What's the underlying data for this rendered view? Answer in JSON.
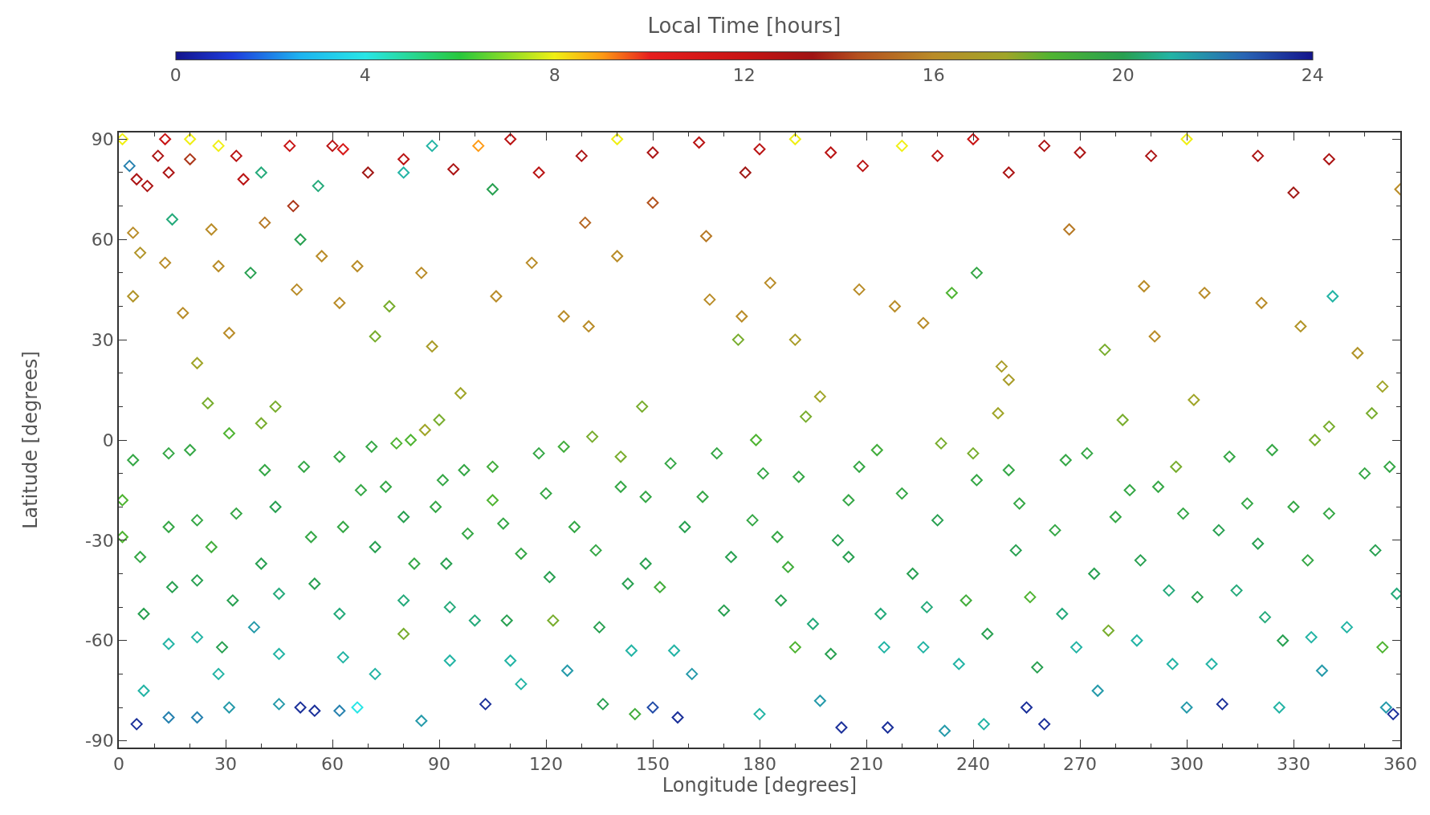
{
  "chart_data": {
    "type": "scatter",
    "xlabel": "Longitude [degrees]",
    "ylabel": "Latitude [degrees]",
    "clabel": "Local Time [hours]",
    "xlim": [
      0,
      360
    ],
    "xticks": [
      0,
      30,
      60,
      90,
      120,
      150,
      180,
      210,
      240,
      270,
      300,
      330,
      360
    ],
    "ylim": [
      -92,
      92
    ],
    "yticks": [
      -90,
      -60,
      -30,
      0,
      30,
      60,
      90
    ],
    "clim": [
      0,
      24
    ],
    "cticks": [
      0,
      4,
      8,
      12,
      16,
      20,
      24
    ],
    "marker": "diamond",
    "x": [
      1,
      3,
      5,
      8,
      4,
      6,
      4,
      1,
      1,
      4,
      6,
      7,
      7,
      5,
      11,
      13,
      14,
      13,
      15,
      14,
      14,
      15,
      14,
      14,
      18,
      20,
      22,
      20,
      22,
      22,
      22,
      22,
      25,
      26,
      28,
      26,
      28,
      29,
      28,
      31,
      31,
      33,
      32,
      31,
      33,
      35,
      37,
      40,
      41,
      40,
      38,
      40,
      41,
      44,
      44,
      45,
      45,
      45,
      48,
      49,
      50,
      51,
      52,
      54,
      51,
      55,
      55,
      57,
      56,
      62,
      63,
      62,
      63,
      62,
      63,
      62,
      67,
      68,
      67,
      70,
      71,
      72,
      72,
      72,
      75,
      76,
      78,
      80,
      82,
      80,
      80,
      80,
      83,
      85,
      86,
      88,
      85,
      89,
      88,
      90,
      91,
      92,
      93,
      93,
      94,
      96,
      97,
      98,
      100,
      101,
      103,
      105,
      105,
      106,
      105,
      108,
      109,
      110,
      113,
      113,
      116,
      118,
      118,
      120,
      121,
      122,
      125,
      125,
      126,
      128,
      131,
      132,
      133,
      134,
      135,
      136,
      140,
      141,
      141,
      143,
      144,
      145,
      147,
      148,
      148,
      150,
      150,
      152,
      155,
      156,
      157,
      159,
      161,
      163,
      165,
      166,
      164,
      168,
      170,
      172,
      174,
      175,
      176,
      178,
      179,
      180,
      181,
      183,
      185,
      186,
      188,
      190,
      190,
      191,
      193,
      195,
      197,
      197,
      200,
      202,
      203,
      205,
      205,
      208,
      208,
      209,
      213,
      214,
      215,
      216,
      218,
      220,
      223,
      226,
      226,
      227,
      230,
      231,
      232,
      234,
      236,
      238,
      240,
      241,
      241,
      243,
      244,
      247,
      248,
      250,
      250,
      252,
      253,
      255,
      256,
      258,
      260,
      263,
      265,
      266,
      267,
      269,
      272,
      274,
      275,
      277,
      278,
      280,
      282,
      284,
      286,
      287,
      288,
      291,
      292,
      295,
      296,
      297,
      299,
      300,
      302,
      303,
      305,
      307,
      309,
      310,
      312,
      314,
      317,
      320,
      321,
      322,
      324,
      326,
      327,
      330,
      332,
      334,
      335,
      336,
      338,
      340,
      340,
      341,
      345,
      348,
      350,
      352,
      353,
      355,
      356,
      358,
      357,
      359,
      360,
      355,
      340,
      330,
      320,
      300,
      290,
      270,
      260,
      250,
      240,
      230,
      220,
      200,
      190,
      180,
      150,
      140,
      130,
      110,
      80,
      60,
      20
    ],
    "values": [
      90,
      82,
      78,
      76,
      62,
      56,
      43,
      -18,
      -29,
      -6,
      -35,
      -52,
      -75,
      -85,
      85,
      90,
      80,
      53,
      66,
      -4,
      -26,
      -44,
      -61,
      -83,
      38,
      84,
      23,
      -3,
      -24,
      -42,
      -59,
      -83,
      11,
      -32,
      52,
      63,
      88,
      -62,
      -70,
      32,
      2,
      -22,
      -48,
      -80,
      85,
      78,
      50,
      5,
      -9,
      -37,
      -56,
      80,
      65,
      10,
      -20,
      -46,
      -64,
      -79,
      88,
      70,
      45,
      60,
      -8,
      -29,
      -80,
      -81,
      -43,
      55,
      76,
      41,
      87,
      -5,
      -26,
      -52,
      -65,
      -81,
      -80,
      -15,
      52,
      80,
      -2,
      31,
      -32,
      -70,
      -14,
      40,
      -1,
      80,
      0,
      -23,
      -48,
      -58,
      -37,
      50,
      3,
      28,
      -84,
      -20,
      88,
      6,
      -12,
      -37,
      -50,
      -66,
      81,
      14,
      -9,
      -28,
      -54,
      88,
      -79,
      -8,
      -18,
      43,
      75,
      -25,
      -54,
      -66,
      -34,
      -73,
      53,
      -4,
      80,
      -16,
      -41,
      -54,
      -2,
      37,
      -69,
      -26,
      65,
      34,
      1,
      -33,
      -56,
      -79,
      55,
      -5,
      -14,
      -43,
      -63,
      -82,
      10,
      -37,
      -17,
      -80,
      71,
      -44,
      -7,
      -63,
      -83,
      -26,
      -70,
      89,
      61,
      42,
      -17,
      -4,
      -51,
      -35,
      30,
      37,
      80,
      -24,
      0,
      -82,
      -10,
      47,
      -29,
      -48,
      -38,
      -62,
      30,
      -11,
      7,
      -55,
      13,
      -78,
      -64,
      -30,
      -86,
      -18,
      -35,
      45,
      -8,
      82,
      -3,
      -52,
      -62,
      -86,
      40,
      -16,
      -40,
      35,
      -62,
      -50,
      -24,
      -1,
      -87,
      44,
      -67,
      -48,
      -4,
      50,
      -12,
      -85,
      -58,
      8,
      22,
      18,
      -9,
      -33,
      -19,
      -80,
      -47,
      -68,
      -85,
      -27,
      -52,
      -6,
      63,
      -62,
      -4,
      -40,
      -75,
      27,
      -57,
      -23,
      6,
      -15,
      -60,
      -36,
      46,
      31,
      -14,
      -45,
      -67,
      -8,
      -22,
      -80,
      12,
      -47,
      44,
      -67,
      -27,
      -79,
      -5,
      -45,
      -19,
      -31,
      41,
      -53,
      -3,
      -80,
      -60,
      -20,
      34,
      -36,
      -59,
      0,
      -69,
      -22,
      4,
      43,
      -56,
      26,
      -10,
      8,
      -33,
      -62,
      -80,
      -82,
      -8,
      -46,
      75,
      16,
      84,
      74,
      85,
      90,
      85,
      86,
      88,
      80,
      90,
      85,
      88,
      86,
      90,
      87,
      86,
      90,
      85,
      90,
      84,
      88,
      90
    ],
    "cvalues": [
      8,
      22,
      13,
      13,
      16,
      16.5,
      16.5,
      18.5,
      18.5,
      19.5,
      19.5,
      20,
      21,
      23.5,
      13,
      12,
      13,
      16,
      20.5,
      19.5,
      19.5,
      20,
      21,
      22,
      16,
      14,
      17.5,
      19.5,
      19.5,
      20,
      21,
      22,
      18,
      19,
      16,
      16,
      8,
      20,
      21,
      16,
      18.5,
      19.5,
      20,
      21.5,
      12.5,
      12.5,
      20,
      18,
      19.5,
      20,
      21.5,
      20.5,
      15.5,
      18,
      20,
      20.5,
      21,
      21.5,
      12,
      14,
      16,
      20,
      19.5,
      19.5,
      23.5,
      23.5,
      20,
      16,
      20.5,
      16,
      11,
      19.5,
      19.5,
      20.5,
      21,
      22,
      4,
      19.5,
      16,
      13.5,
      19.5,
      18,
      20,
      21,
      19.5,
      18,
      18.5,
      21,
      18.5,
      20,
      20.5,
      18,
      19.5,
      16,
      17.5,
      17,
      21.5,
      19.5,
      21,
      18,
      19.5,
      20,
      20.5,
      21,
      13,
      17.5,
      19.5,
      19.5,
      20.5,
      9,
      23.5,
      19,
      18.5,
      16,
      20,
      19.5,
      20,
      21,
      19.5,
      21,
      16,
      19.5,
      12.5,
      19.5,
      20,
      18,
      19,
      16,
      21.5,
      19.5,
      15,
      16,
      18,
      19.5,
      20,
      20,
      16,
      18,
      19.5,
      20,
      21,
      19,
      18,
      20,
      19.5,
      23,
      14.5,
      19,
      19.5,
      21,
      23.5,
      20,
      21.5,
      12.5,
      15.5,
      16,
      19.5,
      19.5,
      20,
      20,
      18,
      16,
      13.5,
      19.5,
      18.5,
      21,
      19.5,
      16,
      19.5,
      20,
      19,
      18.5,
      17,
      19.5,
      18,
      20.5,
      17.5,
      21.5,
      20,
      20,
      23.5,
      19.5,
      20,
      16,
      19.5,
      12.5,
      19,
      20.5,
      21,
      23.5,
      16,
      19.5,
      20,
      16,
      21,
      20.5,
      20,
      18,
      21.5,
      18.5,
      21,
      19,
      18,
      19.5,
      19.5,
      21,
      20,
      17.5,
      17,
      17,
      19.5,
      20,
      19.5,
      23.5,
      18.5,
      20,
      23.5,
      19.5,
      20.5,
      19.5,
      15.5,
      21,
      19.5,
      20,
      21.5,
      18,
      18,
      19.5,
      18,
      19.5,
      21,
      20,
      16,
      16,
      19.5,
      20.5,
      21,
      18,
      19.5,
      21.5,
      17.5,
      20,
      16,
      21,
      20,
      23.5,
      19.5,
      20.5,
      19.5,
      20,
      16,
      20.5,
      19.5,
      21,
      20,
      19.5,
      16.5,
      19.5,
      21,
      18,
      21.5,
      19.5,
      18,
      21,
      21,
      16.5,
      19.5,
      18,
      20,
      18.5,
      21.5,
      23.5,
      19.5,
      20.5,
      16,
      17.5,
      13,
      13.5,
      13,
      8,
      13,
      13,
      13,
      13,
      12,
      12.5,
      8,
      12.5,
      8,
      12.5,
      13,
      8,
      13,
      12.5,
      12.5,
      12.5,
      8
    ]
  }
}
